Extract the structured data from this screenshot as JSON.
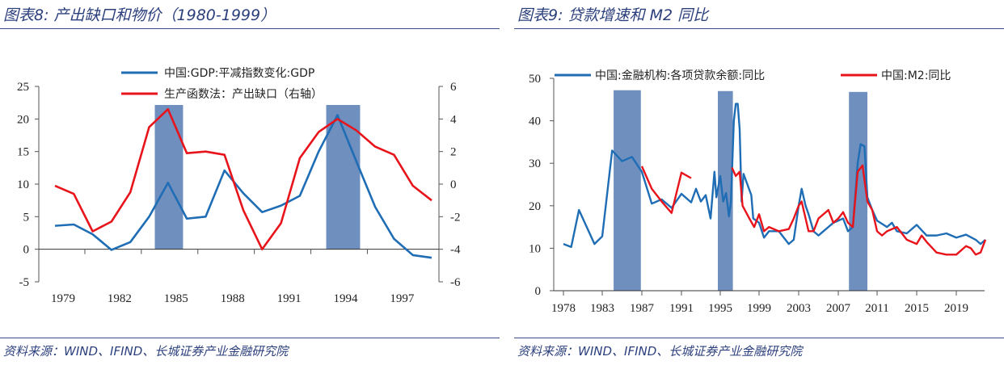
{
  "left_panel": {
    "title": "图表8:  产出缺口和物价（1980-1999）",
    "source": "资料来源：WIND、IFIND、长城证券产业金融研究院"
  },
  "right_panel": {
    "title": "图表9:  贷款增速和 M2 同比",
    "source": "资料来源：WIND、IFIND、长城证券产业金融研究院"
  },
  "chart_data": [
    {
      "type": "line",
      "x": [
        1979,
        1980,
        1981,
        1982,
        1983,
        1984,
        1985,
        1986,
        1987,
        1988,
        1989,
        1990,
        1991,
        1992,
        1993,
        1994,
        1995,
        1996,
        1997,
        1998,
        1999
      ],
      "x_tick_labels": [
        "1979",
        "1982",
        "1985",
        "1988",
        "1991",
        "1994",
        "1997"
      ],
      "ylim": [
        -5,
        25
      ],
      "y_ticks": [
        -5,
        0,
        5,
        10,
        15,
        20,
        25
      ],
      "y2lim": [
        -6,
        6
      ],
      "y2_ticks": [
        -6,
        -4,
        -2,
        0,
        2,
        4,
        6
      ],
      "legend_placement": "top-center",
      "grid": false,
      "shaded_periods": [
        [
          1984.3,
          1985.8
        ],
        [
          1993.4,
          1995.2
        ]
      ],
      "shade_color": "#6f8fbf",
      "series": [
        {
          "name": "中国:GDP:平减指数变化:GDP",
          "axis": "left",
          "color": "#1f6db5",
          "values": [
            3.6,
            3.8,
            2.3,
            -0.1,
            1.1,
            5.0,
            10.2,
            4.7,
            5.0,
            12.1,
            8.6,
            5.7,
            6.7,
            8.2,
            15.0,
            20.6,
            13.5,
            6.5,
            1.6,
            -0.9,
            -1.3
          ]
        },
        {
          "name": "生产函数法：产出缺口（右轴）",
          "axis": "right",
          "color": "#e8141b",
          "values": [
            -0.1,
            -0.6,
            -2.9,
            -2.3,
            -0.5,
            3.5,
            4.6,
            1.9,
            2.0,
            1.8,
            -1.6,
            -4.0,
            -2.4,
            1.6,
            3.2,
            4.0,
            3.3,
            2.3,
            1.8,
            -0.1,
            -1.0
          ]
        }
      ]
    },
    {
      "type": "line",
      "x_tick_labels": [
        "1978",
        "1983",
        "1987",
        "1991",
        "1995",
        "1999",
        "2003",
        "2007",
        "2011",
        "2015",
        "2019"
      ],
      "ylim": [
        0,
        50
      ],
      "y_ticks": [
        0,
        10,
        20,
        30,
        40,
        50
      ],
      "legend_placement": "top",
      "grid": false,
      "shaded_periods": [
        [
          1984.15,
          1986.9
        ],
        [
          1994.75,
          1996.3
        ],
        [
          2008.1,
          2010.0
        ]
      ],
      "shade_color": "#6f8fbf",
      "series": [
        {
          "name": "中国:金融机构:各项贷款余额:同比",
          "color": "#1f6db5",
          "segments": [
            [
              [
                1978,
                11
              ],
              [
                1979,
                10.3
              ],
              [
                1980,
                19
              ],
              [
                1981,
                15
              ],
              [
                1982,
                11
              ],
              [
                1983,
                12.8
              ],
              [
                1984,
                33
              ],
              [
                1985,
                30.5
              ],
              [
                1986,
                31.5
              ],
              [
                1987,
                28
              ],
              [
                1988,
                20.5
              ],
              [
                1989,
                21.5
              ],
              [
                1990,
                19.5
              ],
              [
                1991,
                22.8
              ],
              [
                1992,
                20.8
              ],
              [
                1992.5,
                24
              ],
              [
                1993,
                21
              ],
              [
                1993.5,
                22.5
              ],
              [
                1994,
                17
              ],
              [
                1994.4,
                28
              ],
              [
                1994.6,
                22
              ],
              [
                1995,
                27
              ],
              [
                1995.3,
                21
              ],
              [
                1995.6,
                23
              ],
              [
                1995.9,
                17.5
              ],
              [
                1996.1,
                21
              ],
              [
                1996.4,
                40
              ],
              [
                1996.6,
                44
              ],
              [
                1996.8,
                44
              ],
              [
                1997,
                38
              ],
              [
                1997.2,
                21
              ],
              [
                1997.4,
                27.5
              ],
              [
                1997.8,
                25
              ],
              [
                1998.2,
                22.5
              ],
              [
                1998.4,
                17
              ],
              [
                1999,
                16
              ],
              [
                1999.5,
                12.5
              ],
              [
                2000,
                14
              ],
              [
                2001,
                14
              ],
              [
                2002,
                11
              ],
              [
                2002.5,
                12
              ],
              [
                2003,
                20
              ],
              [
                2003.3,
                24
              ],
              [
                2003.7,
                20
              ],
              [
                2004,
                18
              ],
              [
                2004.5,
                14
              ],
              [
                2005,
                13
              ],
              [
                2006,
                15
              ],
              [
                2006.5,
                16
              ],
              [
                2007,
                16.5
              ],
              [
                2007.5,
                17
              ],
              [
                2008,
                14
              ],
              [
                2008.5,
                15
              ],
              [
                2009,
                30
              ],
              [
                2009.3,
                34.5
              ],
              [
                2009.7,
                34
              ],
              [
                2010,
                22
              ],
              [
                2010.5,
                19
              ],
              [
                2011,
                16.5
              ],
              [
                2012,
                15
              ],
              [
                2012.5,
                16
              ],
              [
                2013,
                14
              ],
              [
                2014,
                13.5
              ],
              [
                2015,
                15.5
              ],
              [
                2016,
                13
              ],
              [
                2017,
                13
              ],
              [
                2018,
                13.5
              ],
              [
                2019,
                12.5
              ],
              [
                2020,
                13.2
              ],
              [
                2021,
                12
              ],
              [
                2021.5,
                11
              ],
              [
                2022,
                12
              ]
            ]
          ]
        },
        {
          "name": "中国:M2:同比",
          "color": "#e8141b",
          "segments": [
            [
              [
                1987,
                29.3
              ],
              [
                1988,
                24
              ],
              [
                1989,
                21
              ],
              [
                1990,
                18.3
              ],
              [
                1991,
                27.8
              ],
              [
                1992,
                26.5
              ]
            ],
            [
              [
                1996.2,
                29
              ],
              [
                1996.6,
                27
              ],
              [
                1997,
                28
              ],
              [
                1997.3,
                20
              ],
              [
                1998,
                17
              ],
              [
                1998.5,
                15
              ],
              [
                1999,
                18
              ],
              [
                1999.5,
                14
              ],
              [
                2000,
                15
              ],
              [
                2001,
                14
              ],
              [
                2002,
                14.5
              ],
              [
                2002.5,
                17
              ],
              [
                2003,
                20
              ],
              [
                2003.3,
                21
              ],
              [
                2004,
                14
              ],
              [
                2004.5,
                14
              ],
              [
                2005,
                17
              ],
              [
                2006,
                19
              ],
              [
                2006.5,
                16
              ],
              [
                2007,
                17
              ],
              [
                2007.5,
                18.5
              ],
              [
                2008,
                16
              ],
              [
                2008.5,
                15
              ],
              [
                2009,
                28
              ],
              [
                2009.5,
                29.5
              ],
              [
                2010,
                21
              ],
              [
                2010.5,
                19
              ],
              [
                2011,
                14
              ],
              [
                2011.5,
                13
              ],
              [
                2012,
                14
              ],
              [
                2013,
                15
              ],
              [
                2014,
                12
              ],
              [
                2015,
                11
              ],
              [
                2015.5,
                13
              ],
              [
                2016,
                11.5
              ],
              [
                2017,
                9
              ],
              [
                2018,
                8.5
              ],
              [
                2019,
                8.5
              ],
              [
                2020,
                10.5
              ],
              [
                2020.5,
                10
              ],
              [
                2021,
                8.5
              ],
              [
                2021.5,
                9
              ],
              [
                2022,
                12
              ]
            ]
          ]
        }
      ]
    }
  ]
}
